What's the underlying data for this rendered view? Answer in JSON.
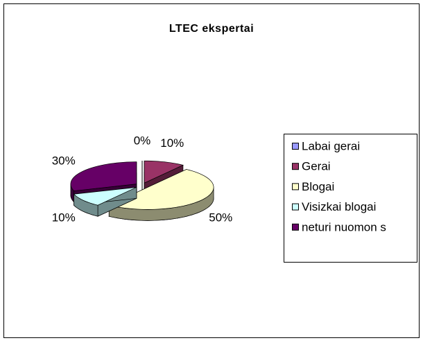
{
  "chart_data": {
    "type": "pie",
    "title": "LTEC ekspertai",
    "categories": [
      "Labai gerai",
      "Gerai",
      "Blogai",
      "Visizkai blogai",
      "neturi nuomon s"
    ],
    "values": [
      0,
      10,
      50,
      10,
      30
    ],
    "value_labels": [
      "0%",
      "10%",
      "50%",
      "10%",
      "30%"
    ],
    "colors": [
      "#9999ff",
      "#993366",
      "#ffffcc",
      "#ccffff",
      "#660066"
    ],
    "legend": "right"
  }
}
